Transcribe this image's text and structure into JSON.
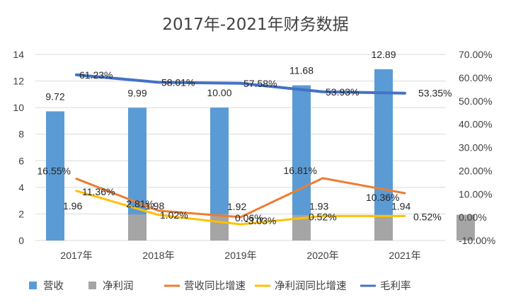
{
  "chart_data": {
    "type": "bar",
    "title": "2017年-2021年财务数据",
    "categories": [
      "2017年",
      "2018年",
      "2019年",
      "2020年",
      "2021年"
    ],
    "y_left": {
      "ylim": [
        0,
        14
      ],
      "ticks": [
        "0",
        "2",
        "4",
        "6",
        "8",
        "10",
        "12",
        "14"
      ]
    },
    "y_right": {
      "ylim": [
        -10,
        70
      ],
      "ticks": [
        "-10.00%",
        "0.00%",
        "10.00%",
        "20.00%",
        "30.00%",
        "40.00%",
        "50.00%",
        "60.00%",
        "70.00%"
      ]
    },
    "series": [
      {
        "name": "营收",
        "kind": "bar",
        "axis": "left",
        "color": "#5B9BD5",
        "values": [
          9.72,
          9.99,
          10.0,
          11.68,
          12.89
        ],
        "labels": [
          "9.72",
          "9.99",
          "10.00",
          "11.68",
          "12.89"
        ]
      },
      {
        "name": "净利润",
        "kind": "bar",
        "axis": "left",
        "color": "#A5A5A5",
        "values": [
          1.96,
          1.98,
          1.92,
          1.93,
          1.94
        ],
        "labels": [
          "1.96",
          "1.98",
          "1.92",
          "1.93",
          "1.94"
        ]
      },
      {
        "name": "营收同比增速",
        "kind": "line",
        "axis": "right",
        "color": "#ED7D31",
        "values": [
          16.55,
          2.81,
          0.06,
          16.81,
          10.36
        ],
        "labels": [
          "16.55%",
          "2.81%",
          "0.06%",
          "16.81%",
          "10.36%"
        ]
      },
      {
        "name": "净利润同比增速",
        "kind": "line",
        "axis": "right",
        "color": "#FFC000",
        "values": [
          11.36,
          1.02,
          -3.03,
          0.52,
          0.52
        ],
        "labels": [
          "11.36%",
          "1.02%",
          "-3.03%",
          "0.52%",
          "0.52%"
        ]
      },
      {
        "name": "毛利率",
        "kind": "line",
        "axis": "right",
        "color": "#4472C4",
        "values": [
          61.23,
          58.01,
          57.58,
          53.93,
          53.35
        ],
        "labels": [
          "61.23%",
          "58.01%",
          "57.58%",
          "53.93%",
          "53.35%"
        ]
      }
    ],
    "grid": true,
    "legend": "bottom"
  }
}
